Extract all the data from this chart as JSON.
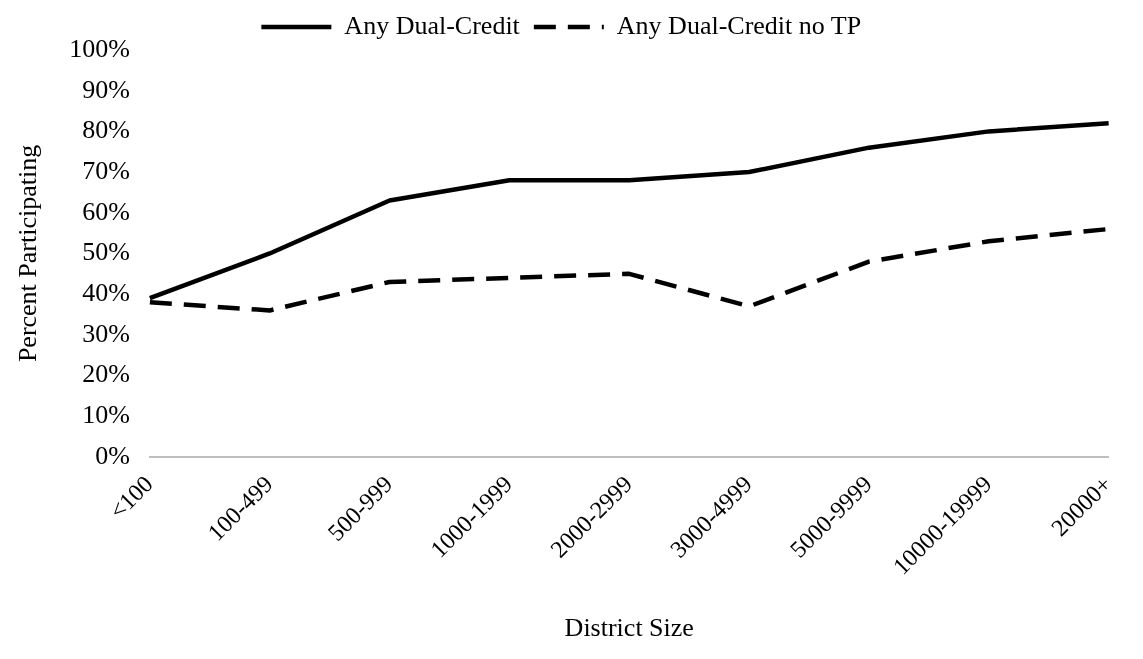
{
  "chart_data": {
    "type": "line",
    "xlabel": "District Size",
    "ylabel": "Percent Participating",
    "categories": [
      "<100",
      "100-499",
      "500-999",
      "1000-1999",
      "2000-2999",
      "3000-4999",
      "5000-9999",
      "10000-19999",
      "20000+"
    ],
    "series": [
      {
        "name": "Any Dual-Credit",
        "color": "#000000",
        "line_style": "solid",
        "values": [
          39,
          50,
          63,
          68,
          68,
          70,
          76,
          80,
          82
        ]
      },
      {
        "name": "Any Dual-Credit no TP",
        "color": "#000000",
        "line_style": "dashed",
        "values": [
          38,
          36,
          43,
          44,
          45,
          37,
          48,
          53,
          56
        ]
      }
    ],
    "ylim": [
      0,
      100
    ],
    "yticks": [
      {
        "value": 0,
        "label": "0%"
      },
      {
        "value": 10,
        "label": "10%"
      },
      {
        "value": 20,
        "label": "20%"
      },
      {
        "value": 30,
        "label": "30%"
      },
      {
        "value": 40,
        "label": "40%"
      },
      {
        "value": 50,
        "label": "50%"
      },
      {
        "value": 60,
        "label": "60%"
      },
      {
        "value": 70,
        "label": "70%"
      },
      {
        "value": 80,
        "label": "80%"
      },
      {
        "value": 90,
        "label": "90%"
      },
      {
        "value": 100,
        "label": "100%"
      }
    ],
    "grid": false,
    "legend": "top",
    "marker": "none"
  }
}
